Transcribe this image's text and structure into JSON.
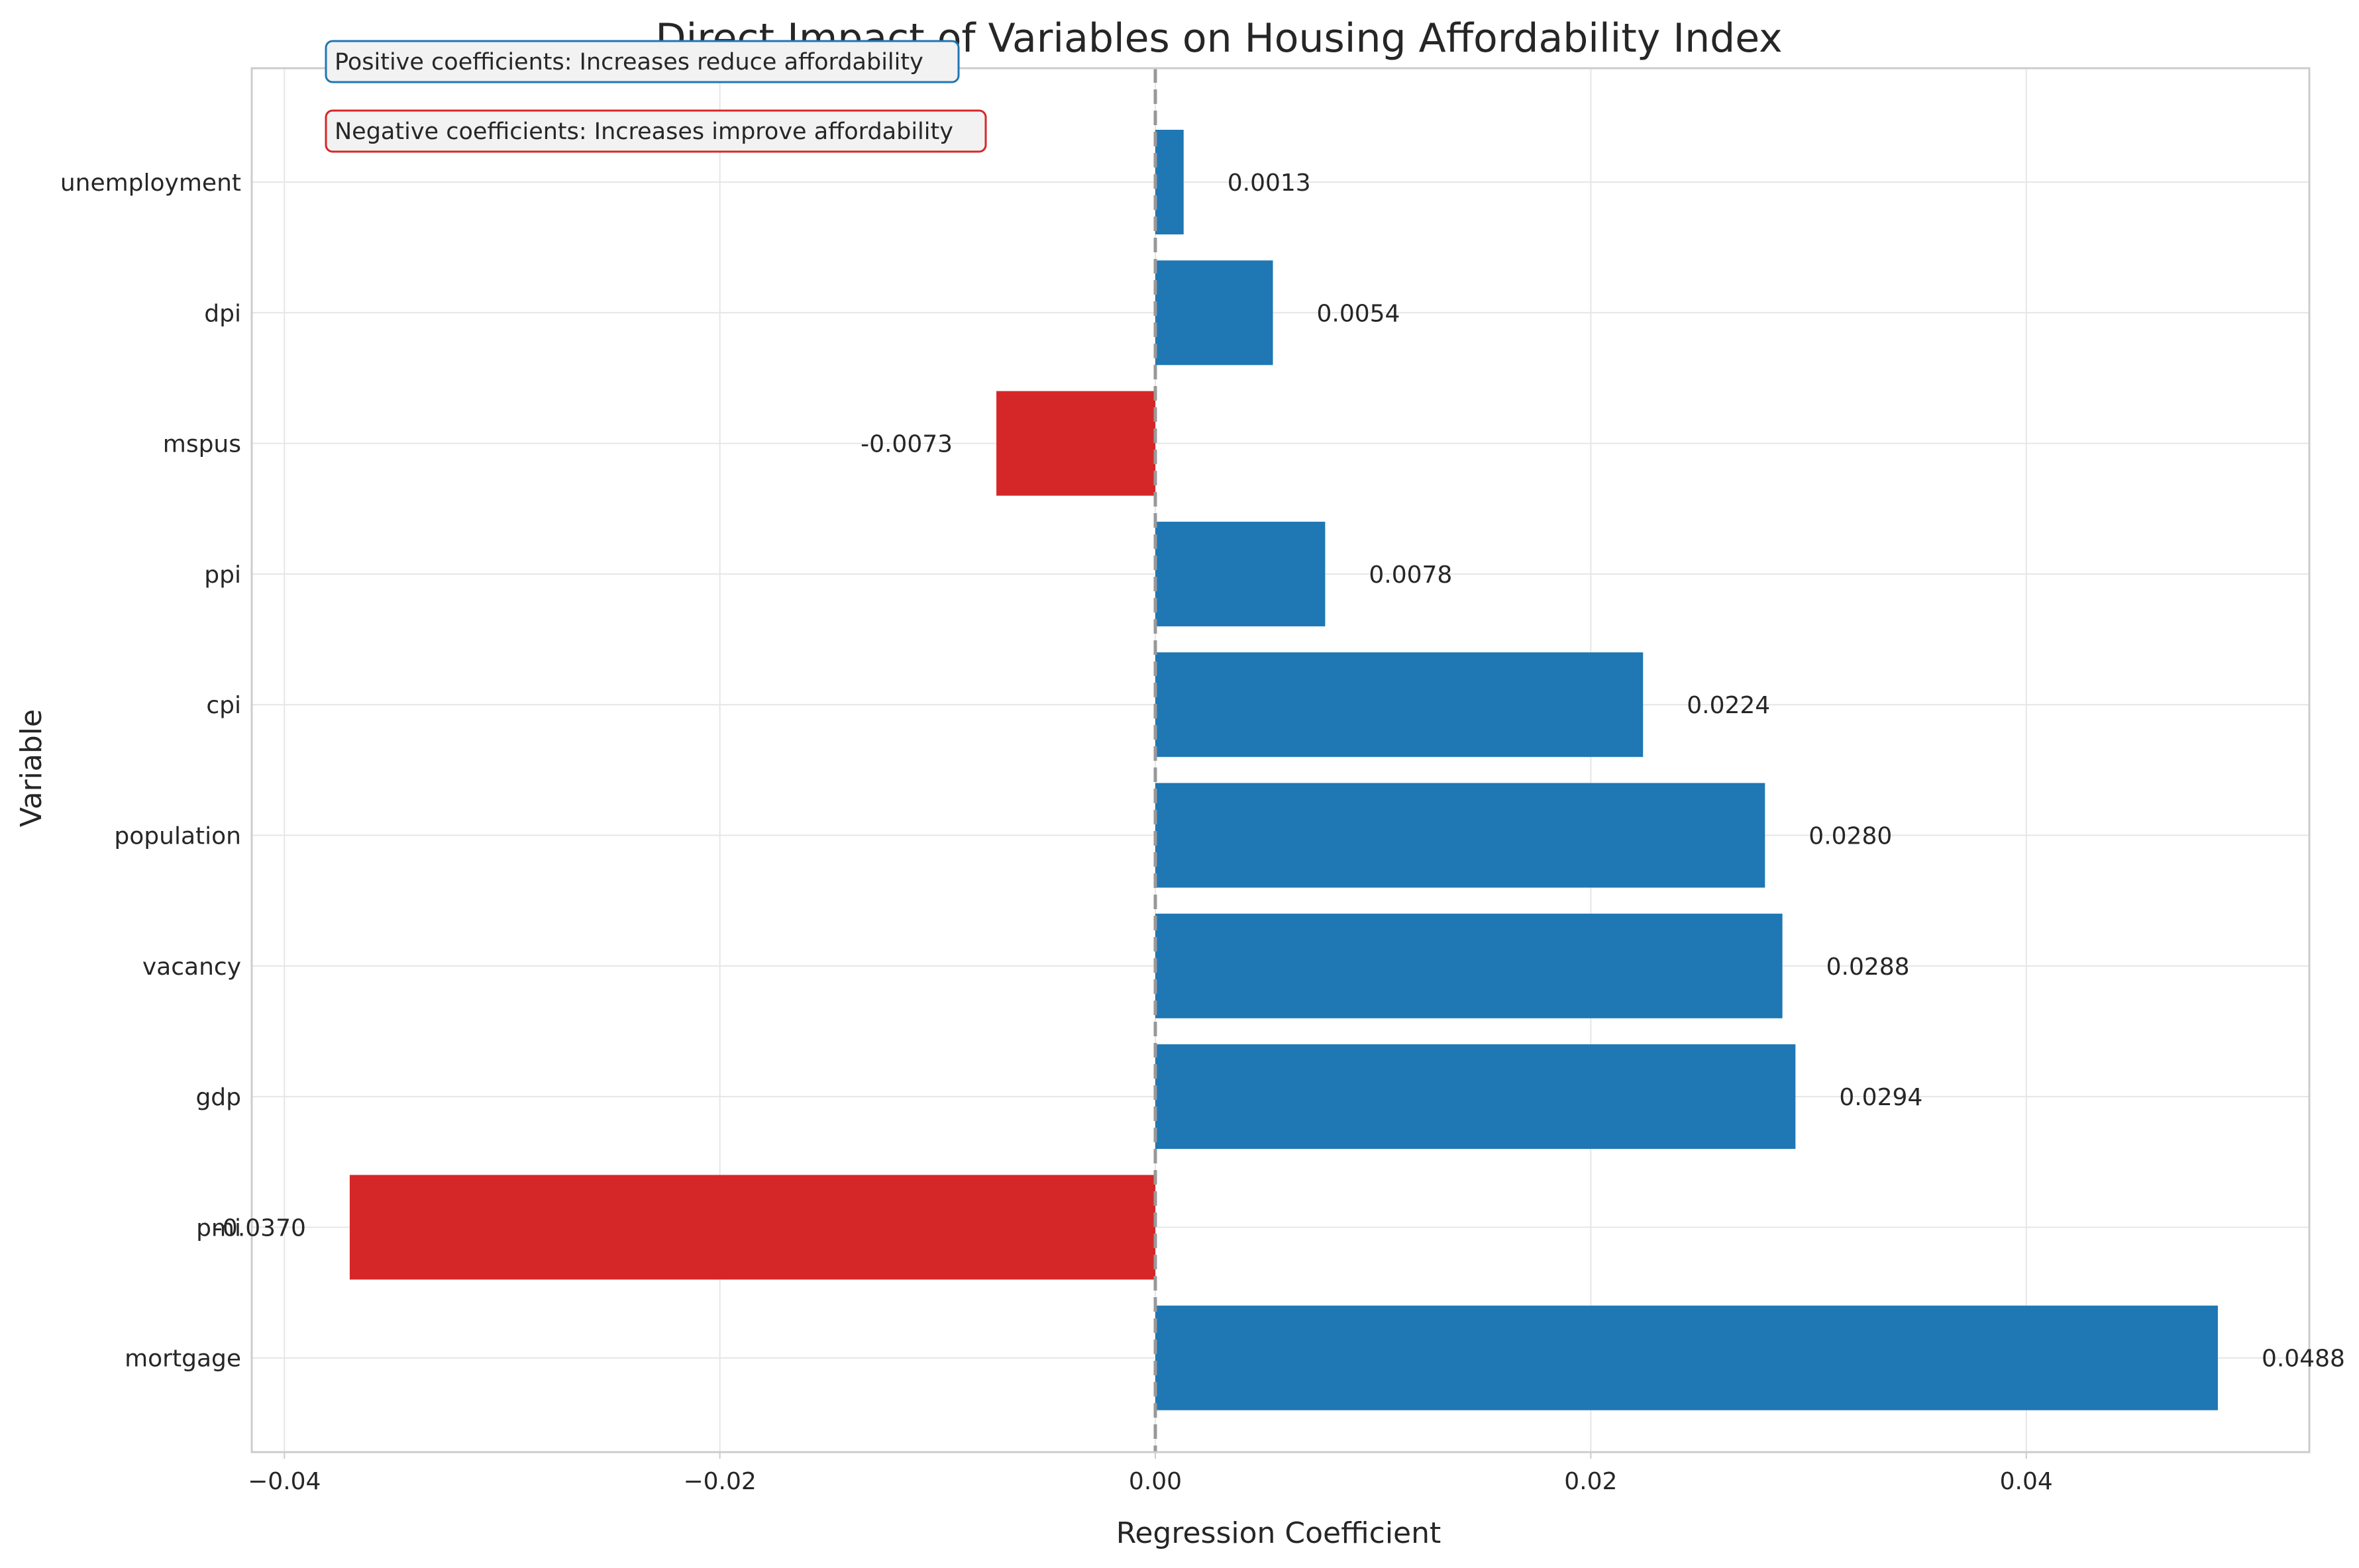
{
  "chart_data": {
    "type": "bar",
    "orientation": "horizontal",
    "title": "Direct Impact of Variables on Housing Affordability Index",
    "xlabel": "Regression Coefficient",
    "ylabel": "Variable",
    "categories": [
      "mortgage",
      "pmi",
      "gdp",
      "vacancy",
      "population",
      "cpi",
      "ppi",
      "mspus",
      "dpi",
      "unemployment"
    ],
    "values": [
      0.0488,
      -0.037,
      0.0294,
      0.0288,
      0.028,
      0.0224,
      0.0078,
      -0.0073,
      0.0054,
      0.0013
    ],
    "value_labels": [
      "0.0488",
      "-0.0370",
      "0.0294",
      "0.0288",
      "0.0280",
      "0.0224",
      "0.0078",
      "-0.0073",
      "0.0054",
      "0.0013"
    ],
    "xlim": [
      -0.0415,
      0.053
    ],
    "xticks": [
      -0.04,
      -0.02,
      0.0,
      0.02,
      0.04
    ],
    "xtick_labels": [
      "−0.04",
      "−0.02",
      "0.00",
      "0.02",
      "0.04"
    ],
    "grid": true,
    "colors": {
      "positive": "#1f77b4",
      "negative": "#d62728",
      "zero_line": "#999999",
      "grid": "#e6e6e6",
      "frame": "#cccccc"
    },
    "annotations": [
      {
        "text": "Positive coefficients: Increases reduce affordability",
        "border_color": "#1f77b4"
      },
      {
        "text": "Negative coefficients: Increases improve affordability",
        "border_color": "#d62728"
      }
    ]
  }
}
